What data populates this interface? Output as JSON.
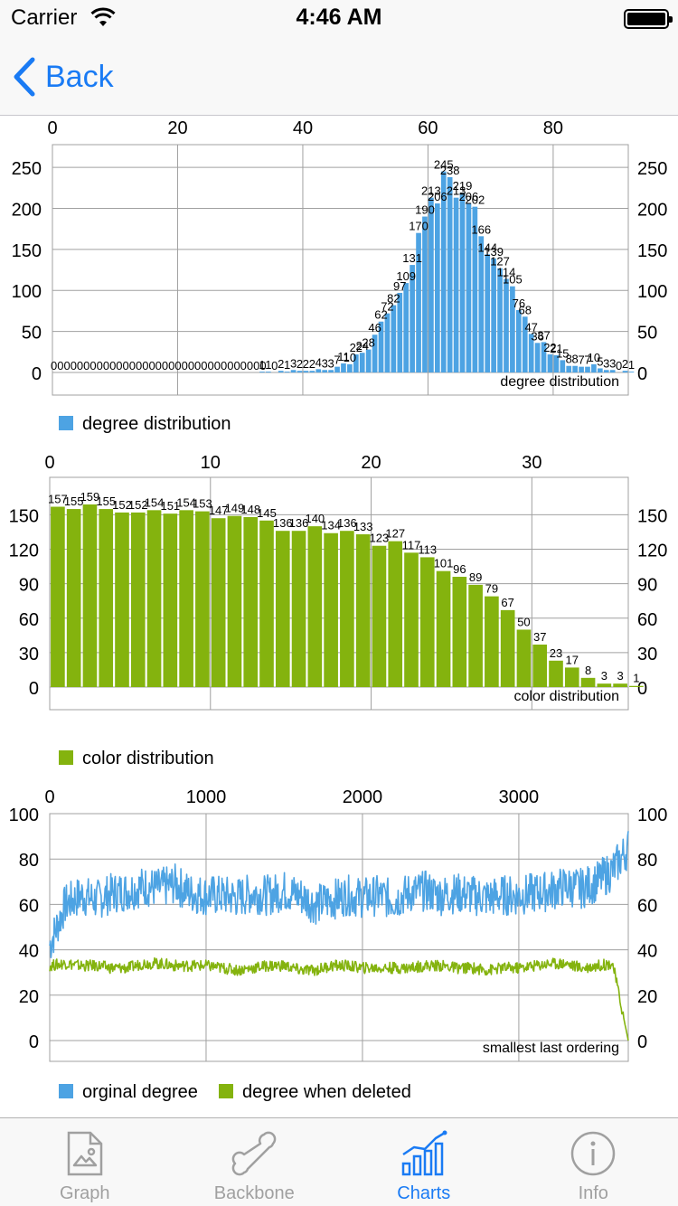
{
  "status_bar": {
    "carrier": "Carrier",
    "time": "4:46 AM"
  },
  "nav": {
    "back_label": "Back"
  },
  "tabs": [
    {
      "label": "Graph",
      "icon": "image-file-icon",
      "active": false
    },
    {
      "label": "Backbone",
      "icon": "bone-icon",
      "active": false
    },
    {
      "label": "Charts",
      "icon": "bar-line-chart-icon",
      "active": true
    },
    {
      "label": "Info",
      "icon": "info-circle-icon",
      "active": false
    }
  ],
  "colors": {
    "accent": "#1a7bf4",
    "blue_series": "#4da3e3",
    "green_series": "#84b30e",
    "grid": "#a0a0a0"
  },
  "chart_data": [
    {
      "type": "bar",
      "description": "degree distribution",
      "legend": [
        "degree distribution"
      ],
      "xlim": [
        0,
        92
      ],
      "ylim": [
        0,
        260
      ],
      "x_ticks": [
        0,
        20,
        40,
        60,
        80
      ],
      "y_ticks": [
        0,
        50,
        100,
        150,
        200,
        250
      ],
      "values": [
        0,
        0,
        0,
        0,
        0,
        0,
        0,
        0,
        0,
        0,
        0,
        0,
        0,
        0,
        0,
        0,
        0,
        0,
        0,
        0,
        0,
        0,
        0,
        0,
        0,
        0,
        0,
        0,
        0,
        0,
        0,
        0,
        0,
        1,
        1,
        0,
        2,
        1,
        3,
        2,
        2,
        2,
        4,
        3,
        3,
        7,
        11,
        10,
        22,
        24,
        28,
        46,
        62,
        72,
        82,
        97,
        109,
        131,
        170,
        190,
        213,
        206,
        245,
        238,
        213,
        219,
        206,
        202,
        166,
        144,
        139,
        127,
        114,
        105,
        76,
        68,
        47,
        36,
        37,
        22,
        21,
        15,
        8,
        8,
        7,
        7,
        10,
        5,
        3,
        3,
        0,
        2,
        1
      ],
      "labeled_values": [
        {
          "x": 0,
          "label": "000000000000000000000000000000000"
        },
        {
          "x": 33,
          "label": "1"
        },
        {
          "x": 34,
          "label": "1"
        },
        {
          "x": 35,
          "label": "0"
        },
        {
          "x": 36,
          "label": "2"
        },
        {
          "x": 37,
          "label": "1"
        },
        {
          "x": 38,
          "label": "3"
        },
        {
          "x": 39,
          "label": "2"
        },
        {
          "x": 40,
          "label": "2"
        },
        {
          "x": 41,
          "label": "2"
        },
        {
          "x": 42,
          "label": "4"
        },
        {
          "x": 43,
          "label": "3"
        },
        {
          "x": 44,
          "label": "3"
        },
        {
          "x": 45,
          "label": "7"
        },
        {
          "x": 46,
          "label": "11"
        },
        {
          "x": 47,
          "label": "10"
        },
        {
          "x": 48,
          "label": "22"
        },
        {
          "x": 49,
          "label": "24"
        },
        {
          "x": 50,
          "label": "28"
        },
        {
          "x": 51,
          "label": "46"
        },
        {
          "x": 52,
          "label": "62"
        },
        {
          "x": 53,
          "label": "72"
        },
        {
          "x": 54,
          "label": "82"
        },
        {
          "x": 55,
          "label": "97"
        },
        {
          "x": 56,
          "label": "109"
        },
        {
          "x": 57,
          "label": "131"
        },
        {
          "x": 58,
          "label": "170"
        },
        {
          "x": 59,
          "label": "190"
        },
        {
          "x": 60,
          "label": "213"
        },
        {
          "x": 61,
          "label": "206"
        },
        {
          "x": 62,
          "label": "245"
        },
        {
          "x": 63,
          "label": "238"
        },
        {
          "x": 64,
          "label": "213"
        },
        {
          "x": 65,
          "label": "219"
        },
        {
          "x": 66,
          "label": "206"
        },
        {
          "x": 67,
          "label": "202"
        },
        {
          "x": 68,
          "label": "166"
        },
        {
          "x": 69,
          "label": "144"
        },
        {
          "x": 70,
          "label": "139"
        },
        {
          "x": 71,
          "label": "127"
        },
        {
          "x": 72,
          "label": "114"
        },
        {
          "x": 73,
          "label": "105"
        },
        {
          "x": 74,
          "label": "76"
        },
        {
          "x": 75,
          "label": "68"
        },
        {
          "x": 76,
          "label": "47"
        },
        {
          "x": 77,
          "label": "36"
        },
        {
          "x": 78,
          "label": "37"
        },
        {
          "x": 79,
          "label": "22"
        },
        {
          "x": 80,
          "label": "21"
        },
        {
          "x": 81,
          "label": "15"
        },
        {
          "x": 82,
          "label": "8"
        },
        {
          "x": 83,
          "label": "8"
        },
        {
          "x": 84,
          "label": "7"
        },
        {
          "x": 85,
          "label": "7"
        },
        {
          "x": 86,
          "label": "10"
        },
        {
          "x": 87,
          "label": "5"
        },
        {
          "x": 88,
          "label": "3"
        },
        {
          "x": 89,
          "label": "3"
        },
        {
          "x": 90,
          "label": "0"
        },
        {
          "x": 91,
          "label": "2"
        },
        {
          "x": 92,
          "label": "1"
        }
      ]
    },
    {
      "type": "bar",
      "description": "color distribution",
      "legend": [
        "color distribution"
      ],
      "xlim": [
        0,
        36
      ],
      "ylim": [
        0,
        170
      ],
      "x_ticks": [
        0,
        10,
        20,
        30
      ],
      "y_ticks": [
        0,
        30,
        60,
        90,
        120,
        150
      ],
      "values": [
        157,
        155,
        159,
        155,
        152,
        152,
        154,
        151,
        154,
        153,
        147,
        149,
        148,
        145,
        136,
        136,
        140,
        134,
        136,
        133,
        123,
        127,
        117,
        113,
        101,
        96,
        89,
        79,
        67,
        50,
        37,
        23,
        17,
        8,
        3,
        3,
        1
      ]
    },
    {
      "type": "line",
      "description": "smallest last ordering",
      "legend": [
        "orginal degree",
        "degree when deleted"
      ],
      "xlim": [
        0,
        3700
      ],
      "ylim": [
        0,
        100
      ],
      "x_ticks": [
        0,
        1000,
        2000,
        3000
      ],
      "y_ticks": [
        0,
        20,
        40,
        60,
        80,
        100
      ],
      "series": [
        {
          "name": "orginal degree",
          "x": [
            0,
            100,
            200,
            300,
            400,
            500,
            600,
            700,
            800,
            900,
            1000,
            1100,
            1200,
            1300,
            1400,
            1500,
            1600,
            1700,
            1800,
            1900,
            2000,
            2100,
            2200,
            2300,
            2400,
            2500,
            2600,
            2700,
            2800,
            2900,
            3000,
            3100,
            3200,
            3300,
            3400,
            3500,
            3600,
            3700
          ],
          "values": [
            42,
            60,
            64,
            62,
            65,
            66,
            68,
            67,
            69,
            65,
            64,
            64,
            63,
            65,
            64,
            66,
            64,
            60,
            62,
            64,
            63,
            64,
            62,
            65,
            66,
            64,
            65,
            64,
            63,
            64,
            64,
            65,
            66,
            68,
            67,
            70,
            75,
            85
          ]
        },
        {
          "name": "degree when deleted",
          "x": [
            0,
            100,
            200,
            300,
            400,
            500,
            600,
            700,
            800,
            900,
            1000,
            1100,
            1200,
            1300,
            1400,
            1500,
            1600,
            1700,
            1800,
            1900,
            2000,
            2100,
            2200,
            2300,
            2400,
            2500,
            2600,
            2700,
            2800,
            2900,
            3000,
            3100,
            3200,
            3300,
            3400,
            3500,
            3600,
            3700
          ],
          "values": [
            33,
            34,
            33,
            33,
            32,
            32,
            34,
            34,
            33,
            33,
            33,
            32,
            31,
            32,
            33,
            33,
            31,
            31,
            33,
            33,
            32,
            32,
            32,
            32,
            33,
            33,
            32,
            32,
            31,
            32,
            32,
            33,
            34,
            34,
            32,
            33,
            34,
            0
          ]
        }
      ]
    }
  ]
}
